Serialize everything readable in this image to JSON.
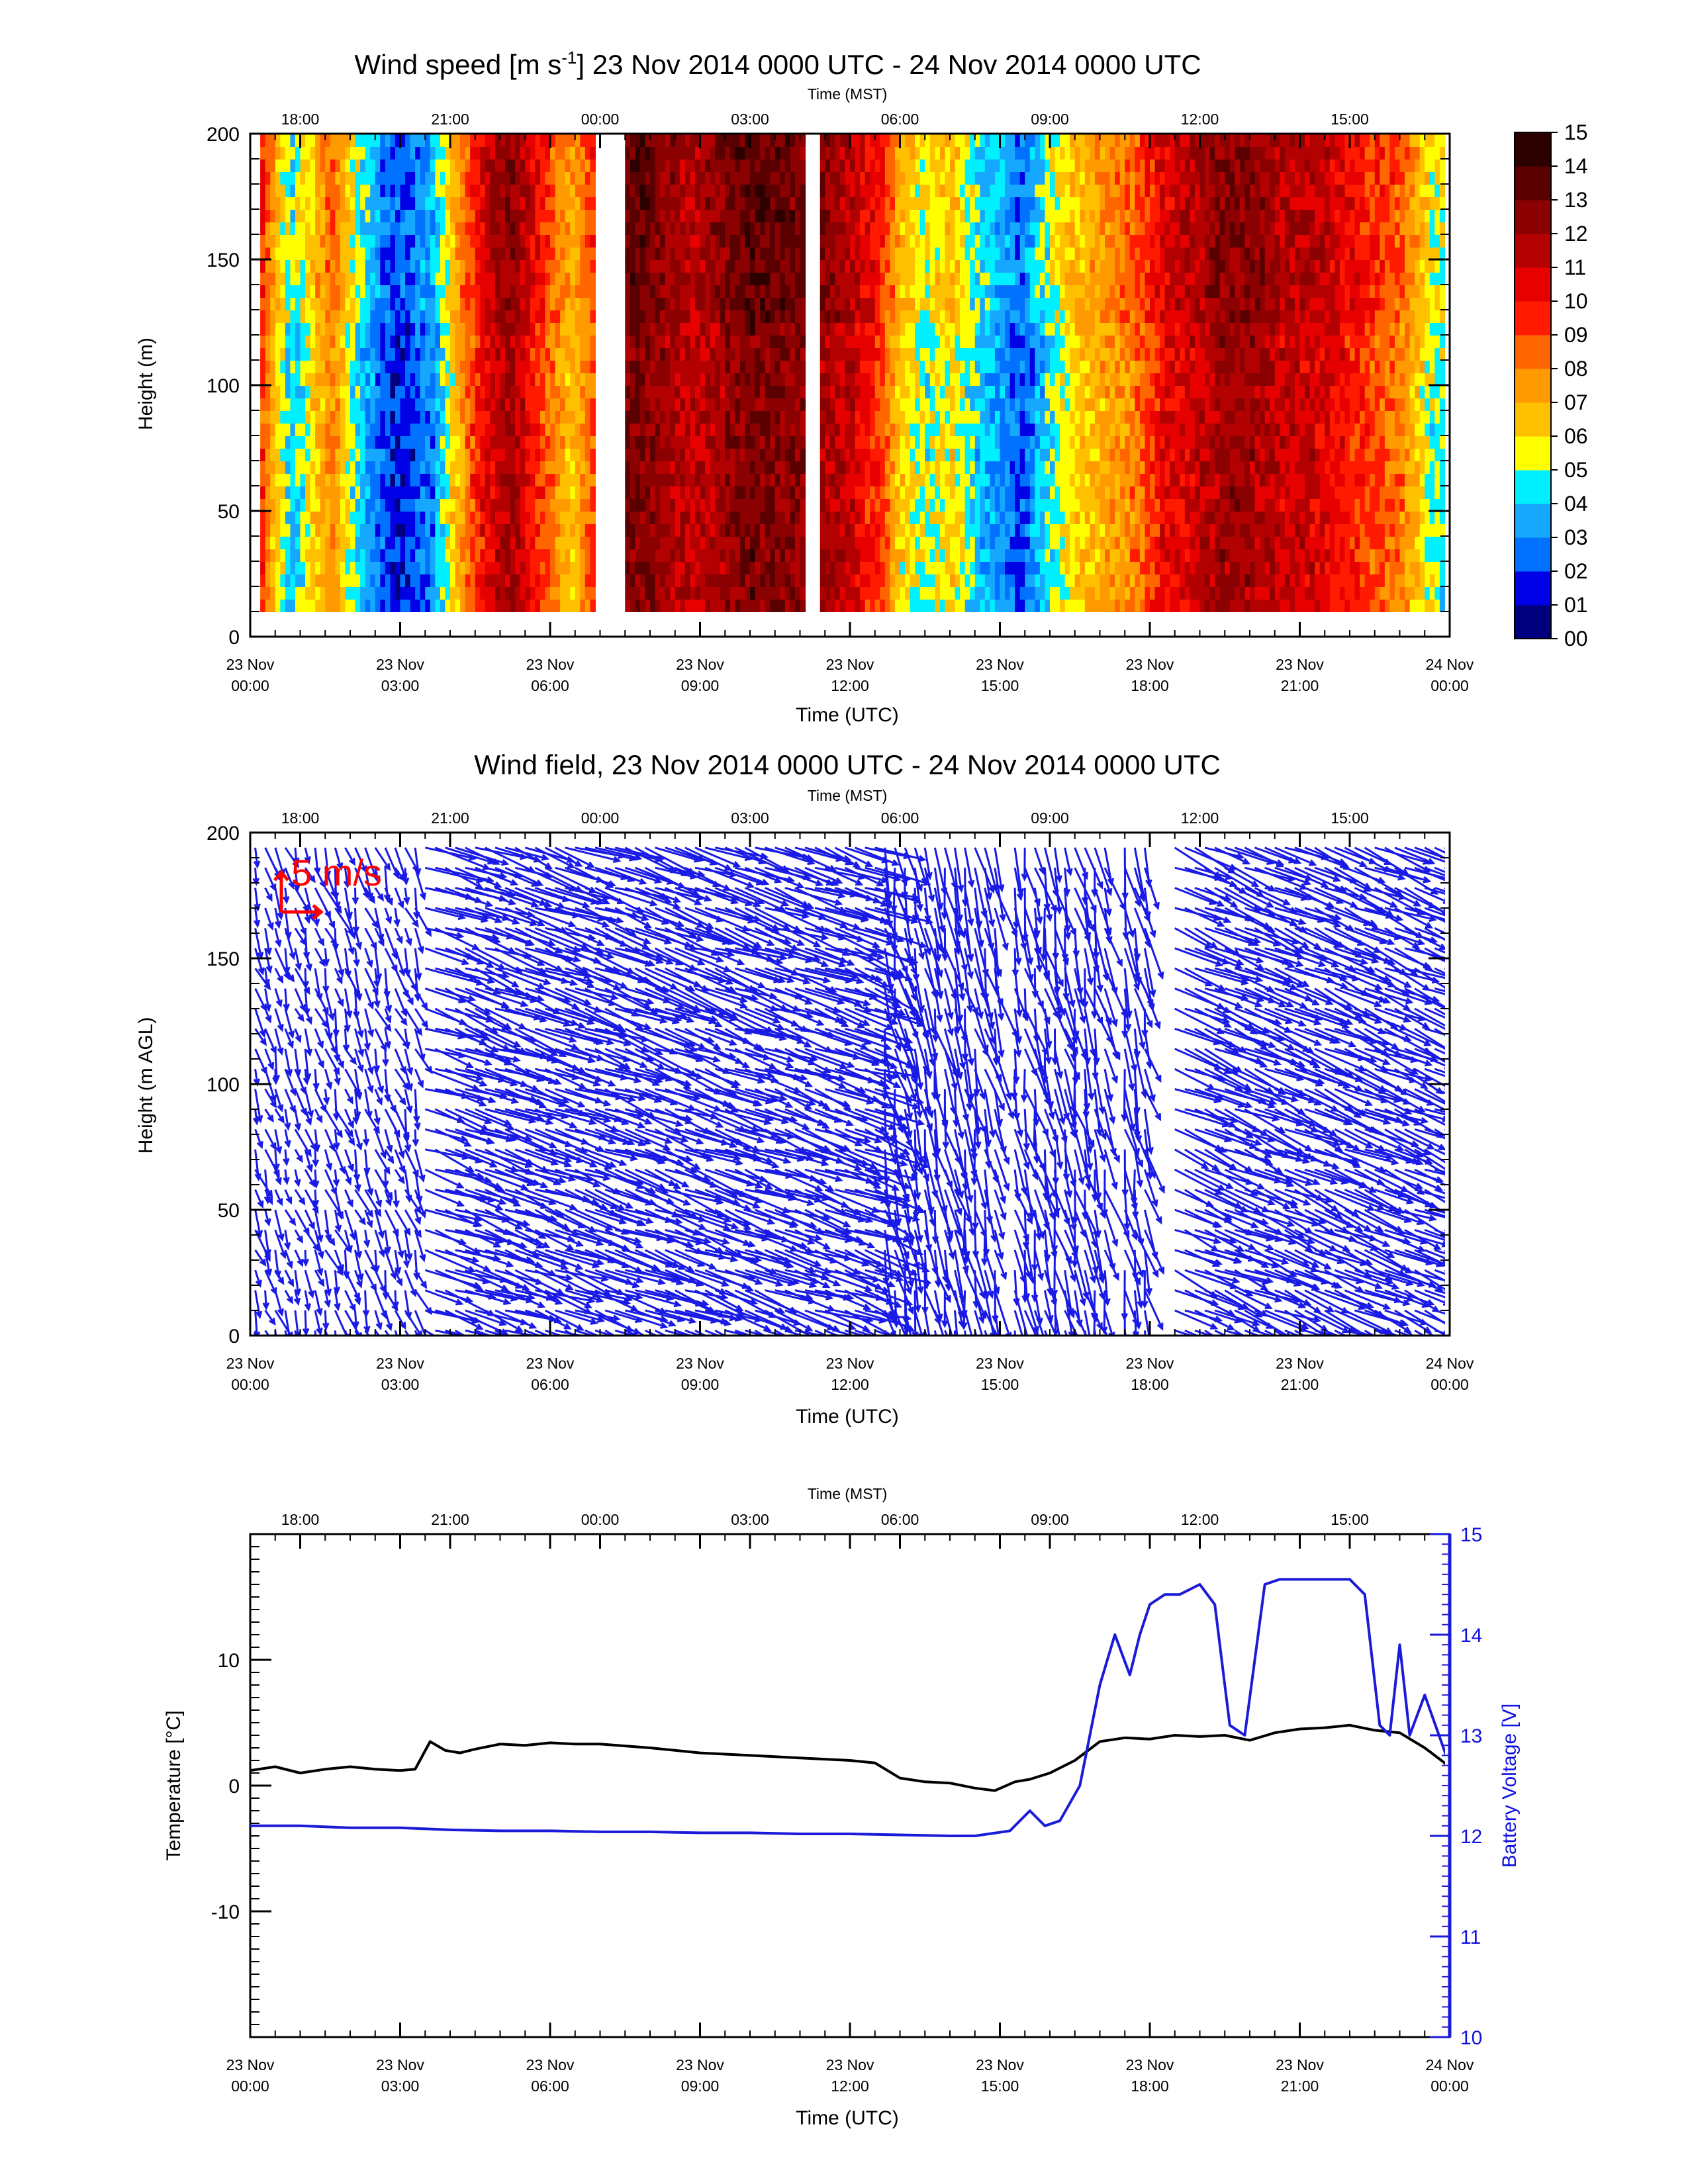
{
  "chart_data": [
    {
      "type": "heatmap",
      "title": "Wind speed [m s",
      "title_sup": "-1",
      "title_rest": "] 23 Nov 2014 0000 UTC - 24 Nov 2014 0000 UTC",
      "xlabel": "Time (UTC)",
      "xlabel_top": "Time (MST)",
      "ylabel": "Height (m)",
      "xlim_hours_utc": [
        0,
        24
      ],
      "ylim": [
        0,
        200
      ],
      "yticks": [
        "0",
        "50",
        "100",
        "150",
        "200"
      ],
      "xticks_bottom": [
        [
          "23 Nov",
          "00:00"
        ],
        [
          "23 Nov",
          "03:00"
        ],
        [
          "23 Nov",
          "06:00"
        ],
        [
          "23 Nov",
          "09:00"
        ],
        [
          "23 Nov",
          "12:00"
        ],
        [
          "23 Nov",
          "15:00"
        ],
        [
          "23 Nov",
          "18:00"
        ],
        [
          "23 Nov",
          "21:00"
        ],
        [
          "24 Nov",
          "00:00"
        ]
      ],
      "xticks_top": [
        "18:00",
        "21:00",
        "00:00",
        "03:00",
        "06:00",
        "09:00",
        "12:00",
        "15:00"
      ],
      "colorbar_labels": [
        "00",
        "01",
        "02",
        "03",
        "04",
        "05",
        "06",
        "07",
        "08",
        "09",
        "10",
        "11",
        "12",
        "13",
        "14",
        "15"
      ],
      "colorbar_colors": [
        "#00007f",
        "#0000e6",
        "#0072ff",
        "#16a8ff",
        "#00f0ff",
        "#ffff00",
        "#ffc000",
        "#ff9a00",
        "#ff6600",
        "#ff1a00",
        "#e60000",
        "#b30000",
        "#8b0000",
        "#5a0000",
        "#2d0000"
      ],
      "speed_profile": [
        {
          "t": 0.2,
          "v": 9
        },
        {
          "t": 0.5,
          "v": 6
        },
        {
          "t": 0.8,
          "v": 4
        },
        {
          "t": 1.2,
          "v": 6
        },
        {
          "t": 1.6,
          "v": 8
        },
        {
          "t": 2.0,
          "v": 5
        },
        {
          "t": 2.4,
          "v": 3
        },
        {
          "t": 2.8,
          "v": 1.5
        },
        {
          "t": 3.2,
          "v": 2
        },
        {
          "t": 3.6,
          "v": 3
        },
        {
          "t": 4.0,
          "v": 6
        },
        {
          "t": 4.4,
          "v": 9
        },
        {
          "t": 4.8,
          "v": 11
        },
        {
          "t": 5.2,
          "v": 12
        },
        {
          "t": 5.6,
          "v": 10
        },
        {
          "t": 6.0,
          "v": 8
        },
        {
          "t": 6.4,
          "v": 6.5
        },
        {
          "t": 7.6,
          "v": 13
        },
        {
          "t": 8.2,
          "v": 12
        },
        {
          "t": 8.8,
          "v": 11
        },
        {
          "t": 9.4,
          "v": 12
        },
        {
          "t": 10.0,
          "v": 13
        },
        {
          "t": 11.4,
          "v": 12
        },
        {
          "t": 12.0,
          "v": 11
        },
        {
          "t": 12.6,
          "v": 9
        },
        {
          "t": 13.0,
          "v": 6
        },
        {
          "t": 13.5,
          "v": 5
        },
        {
          "t": 14.0,
          "v": 6
        },
        {
          "t": 14.5,
          "v": 4
        },
        {
          "t": 15.0,
          "v": 3
        },
        {
          "t": 15.4,
          "v": 2
        },
        {
          "t": 15.8,
          "v": 4
        },
        {
          "t": 16.4,
          "v": 6
        },
        {
          "t": 17.0,
          "v": 7
        },
        {
          "t": 17.6,
          "v": 8
        },
        {
          "t": 18.2,
          "v": 10
        },
        {
          "t": 18.8,
          "v": 11
        },
        {
          "t": 19.4,
          "v": 12
        },
        {
          "t": 20.0,
          "v": 12
        },
        {
          "t": 20.6,
          "v": 11
        },
        {
          "t": 21.2,
          "v": 11
        },
        {
          "t": 21.8,
          "v": 10
        },
        {
          "t": 22.4,
          "v": 9
        },
        {
          "t": 23.0,
          "v": 8
        },
        {
          "t": 23.6,
          "v": 5
        }
      ],
      "gaps_hours_utc": [
        [
          6.8,
          7.4
        ],
        [
          11.0,
          11.3
        ]
      ]
    },
    {
      "type": "scatter",
      "title": "Wind field, 23 Nov 2014 0000 UTC - 24 Nov 2014 0000 UTC",
      "xlabel": "Time (UTC)",
      "xlabel_top": "Time (MST)",
      "ylabel": "Height (m AGL)",
      "xlim_hours_utc": [
        0,
        24
      ],
      "ylim": [
        0,
        200
      ],
      "yticks": [
        "0",
        "50",
        "100",
        "150",
        "200"
      ],
      "xticks_bottom": [
        [
          "23 Nov",
          "00:00"
        ],
        [
          "23 Nov",
          "03:00"
        ],
        [
          "23 Nov",
          "06:00"
        ],
        [
          "23 Nov",
          "09:00"
        ],
        [
          "23 Nov",
          "12:00"
        ],
        [
          "23 Nov",
          "15:00"
        ],
        [
          "23 Nov",
          "18:00"
        ],
        [
          "23 Nov",
          "21:00"
        ],
        [
          "24 Nov",
          "00:00"
        ]
      ],
      "xticks_top": [
        "18:00",
        "21:00",
        "00:00",
        "03:00",
        "06:00",
        "09:00",
        "12:00",
        "15:00"
      ],
      "reference_vector_label": "5 m/s",
      "vector_color": "#1a1ae6",
      "reference_color": "#ff0000",
      "gaps_hours_utc": [
        [
          4.0,
          4.1
        ],
        [
          14.9,
          15.1
        ],
        [
          17.1,
          17.3
        ],
        [
          18.0,
          18.3
        ]
      ]
    },
    {
      "type": "line",
      "xlabel": "Time (UTC)",
      "xlabel_top": "Time (MST)",
      "ylabel": "Temperature [°C]",
      "ylabel_right": "Battery Voltage [V]",
      "xlim_hours_utc": [
        0,
        24
      ],
      "ylim": [
        -20,
        20
      ],
      "ylim_right": [
        10,
        15
      ],
      "yticks": [
        "-10",
        "0",
        "10"
      ],
      "yticks_right": [
        "10",
        "11",
        "12",
        "13",
        "14",
        "15"
      ],
      "xticks_bottom": [
        [
          "23 Nov",
          "00:00"
        ],
        [
          "23 Nov",
          "03:00"
        ],
        [
          "23 Nov",
          "06:00"
        ],
        [
          "23 Nov",
          "09:00"
        ],
        [
          "23 Nov",
          "12:00"
        ],
        [
          "23 Nov",
          "15:00"
        ],
        [
          "23 Nov",
          "18:00"
        ],
        [
          "23 Nov",
          "21:00"
        ],
        [
          "24 Nov",
          "00:00"
        ]
      ],
      "xticks_top": [
        "18:00",
        "21:00",
        "00:00",
        "03:00",
        "06:00",
        "09:00",
        "12:00",
        "15:00"
      ],
      "series": [
        {
          "color": "#000000",
          "axis": "left",
          "x": [
            0,
            0.5,
            1.0,
            1.5,
            2.0,
            2.5,
            3.0,
            3.3,
            3.6,
            3.9,
            4.2,
            4.5,
            5.0,
            5.5,
            6.0,
            6.5,
            7.0,
            8.0,
            9.0,
            10.0,
            11.0,
            12.0,
            12.5,
            13.0,
            13.5,
            14.0,
            14.5,
            14.9,
            15.3,
            15.6,
            16.0,
            16.5,
            17.0,
            17.5,
            18.0,
            18.5,
            19.0,
            19.5,
            20.0,
            20.5,
            21.0,
            21.5,
            22.0,
            22.5,
            23.0,
            23.5,
            24.0
          ],
          "values": [
            1.2,
            1.5,
            1.0,
            1.3,
            1.5,
            1.3,
            1.2,
            1.3,
            3.5,
            2.8,
            2.6,
            2.9,
            3.3,
            3.2,
            3.4,
            3.3,
            3.3,
            3.0,
            2.6,
            2.4,
            2.2,
            2.0,
            1.8,
            0.6,
            0.3,
            0.2,
            -0.2,
            -0.4,
            0.3,
            0.5,
            1.0,
            2.0,
            3.5,
            3.8,
            3.7,
            4.0,
            3.9,
            4.0,
            3.6,
            4.2,
            4.5,
            4.6,
            4.8,
            4.4,
            4.2,
            3.0,
            1.5
          ]
        },
        {
          "color": "#1a1ad8",
          "axis": "right",
          "x": [
            0,
            1.0,
            2.0,
            3.0,
            4.0,
            5.0,
            6.0,
            7.0,
            8.0,
            9.0,
            10.0,
            11.0,
            12.0,
            13.0,
            14.0,
            14.5,
            15.2,
            15.6,
            15.9,
            16.2,
            16.6,
            17.0,
            17.3,
            17.6,
            17.8,
            18.0,
            18.3,
            18.6,
            19.0,
            19.3,
            19.6,
            19.9,
            20.3,
            20.6,
            21.0,
            21.5,
            22.0,
            22.3,
            22.6,
            22.8,
            23.0,
            23.2,
            23.5,
            24.0
          ],
          "values": [
            12.1,
            12.1,
            12.08,
            12.08,
            12.06,
            12.05,
            12.05,
            12.04,
            12.04,
            12.03,
            12.03,
            12.02,
            12.02,
            12.01,
            12.0,
            12.0,
            12.05,
            12.25,
            12.1,
            12.15,
            12.5,
            13.5,
            14.0,
            13.6,
            14.0,
            14.3,
            14.4,
            14.4,
            14.5,
            14.3,
            13.1,
            13.0,
            14.5,
            14.55,
            14.55,
            14.55,
            14.55,
            14.4,
            13.1,
            13.0,
            13.9,
            13.0,
            13.4,
            12.7
          ]
        }
      ]
    }
  ]
}
